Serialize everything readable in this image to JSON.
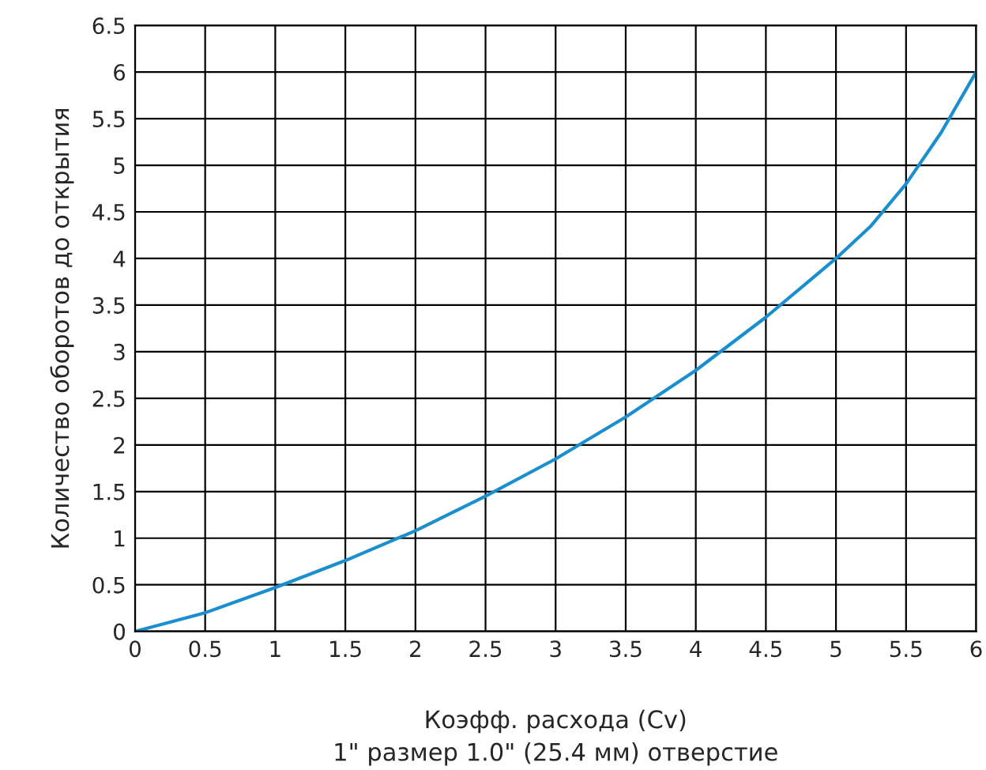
{
  "chart_data": {
    "type": "line",
    "xlabel": "Коэфф. расхода (Cv)\n1\" размер 1.0\" (25.4 мм) отверстие",
    "ylabel": "Количество оборотов до открытия",
    "x": [
      0,
      0.5,
      1,
      1.5,
      2,
      2.5,
      3,
      3.5,
      4,
      4.5,
      5,
      5.25,
      5.5,
      5.75,
      6
    ],
    "series": [
      {
        "color": "#1a8fd0",
        "values": [
          0,
          0.2,
          0.47,
          0.76,
          1.08,
          1.45,
          1.85,
          2.3,
          2.8,
          3.37,
          4.0,
          4.35,
          4.8,
          5.35,
          6.0
        ]
      }
    ],
    "xlim": [
      0,
      6
    ],
    "ylim": [
      0,
      6.5
    ],
    "xticks": [
      0,
      0.5,
      1,
      1.5,
      2,
      2.5,
      3,
      3.5,
      4,
      4.5,
      5,
      5.5,
      6
    ],
    "yticks": [
      0,
      0.5,
      1,
      1.5,
      2,
      2.5,
      3,
      3.5,
      4,
      4.5,
      5,
      5.5,
      6,
      6.5
    ],
    "grid": true,
    "marker": "none",
    "line_style": "solid"
  }
}
